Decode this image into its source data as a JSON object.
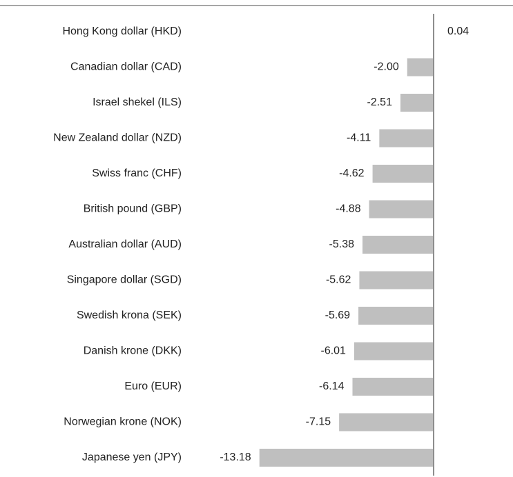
{
  "chart_data": {
    "type": "barh",
    "categories": [
      "Hong Kong dollar (HKD)",
      "Canadian dollar (CAD)",
      "Israel shekel (ILS)",
      "New Zealand dollar (NZD)",
      "Swiss franc (CHF)",
      "British pound  (GBP)",
      "Australian dollar (AUD)",
      "Singapore  dollar (SGD)",
      "Swedish krona  (SEK)",
      "Danish krone (DKK)",
      "Euro (EUR)",
      "Norwegian krone (NOK)",
      "Japanese  yen (JPY)"
    ],
    "values": [
      0.04,
      -2.0,
      -2.51,
      -4.11,
      -4.62,
      -4.88,
      -5.38,
      -5.62,
      -5.69,
      -6.01,
      -6.14,
      -7.15,
      -13.18
    ],
    "value_labels": [
      "0.04",
      "-2.00",
      "-2.51",
      "-4.11",
      "-4.62",
      "-4.88",
      "-5.38",
      "-5.62",
      "-5.69",
      "-6.01",
      "-6.14",
      "-7.15",
      "-13.18"
    ],
    "color": "#bfbfbf",
    "label_colors": {
      "negative": "#99154a",
      "positive": "#808080"
    },
    "xlim": [
      -14,
      0.5
    ]
  }
}
